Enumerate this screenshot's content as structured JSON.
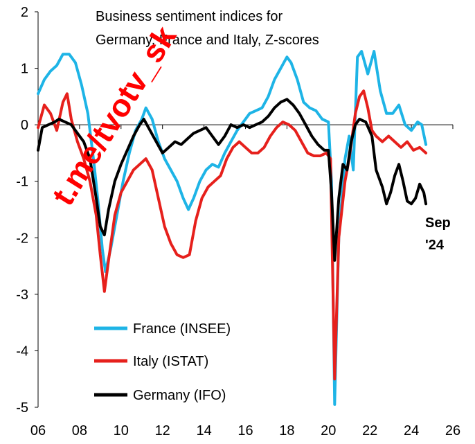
{
  "chart_data": {
    "type": "line",
    "title_lines": [
      "Business sentiment indices for",
      "Germany, France and Italy, Z-scores"
    ],
    "xlim": [
      2006,
      2026
    ],
    "ylim": [
      -5,
      2
    ],
    "x_ticks": [
      {
        "value": 2006,
        "label": "06"
      },
      {
        "value": 2008,
        "label": "08"
      },
      {
        "value": 2010,
        "label": "10"
      },
      {
        "value": 2012,
        "label": "12"
      },
      {
        "value": 2014,
        "label": "14"
      },
      {
        "value": 2016,
        "label": "16"
      },
      {
        "value": 2018,
        "label": "18"
      },
      {
        "value": 2020,
        "label": "20"
      },
      {
        "value": 2022,
        "label": "22"
      },
      {
        "value": 2024,
        "label": "24"
      },
      {
        "value": 2026,
        "label": "26"
      }
    ],
    "y_ticks": [
      {
        "value": 2,
        "label": "2"
      },
      {
        "value": 1,
        "label": "1"
      },
      {
        "value": 0,
        "label": "0"
      },
      {
        "value": -1,
        "label": "-1"
      },
      {
        "value": -2,
        "label": "-2"
      },
      {
        "value": -3,
        "label": "-3"
      },
      {
        "value": -4,
        "label": "-4"
      },
      {
        "value": -5,
        "label": "-5"
      }
    ],
    "grid": false,
    "legend": "bottom-left",
    "annotation": [
      "Sep",
      "'24"
    ],
    "watermark": "t.me/tvotv_sk",
    "series": [
      {
        "name": "France (INSEE)",
        "color": "#1eb4e6",
        "points": [
          [
            2006.0,
            0.55
          ],
          [
            2006.3,
            0.8
          ],
          [
            2006.6,
            0.95
          ],
          [
            2006.9,
            1.05
          ],
          [
            2007.2,
            1.25
          ],
          [
            2007.5,
            1.25
          ],
          [
            2007.8,
            1.1
          ],
          [
            2008.1,
            0.7
          ],
          [
            2008.4,
            0.2
          ],
          [
            2008.7,
            -0.7
          ],
          [
            2008.9,
            -1.4
          ],
          [
            2009.1,
            -2.2
          ],
          [
            2009.25,
            -2.6
          ],
          [
            2009.5,
            -2.2
          ],
          [
            2009.8,
            -1.6
          ],
          [
            2010.1,
            -1.0
          ],
          [
            2010.4,
            -0.5
          ],
          [
            2010.7,
            -0.1
          ],
          [
            2011.0,
            0.1
          ],
          [
            2011.2,
            0.3
          ],
          [
            2011.5,
            0.1
          ],
          [
            2011.8,
            -0.3
          ],
          [
            2012.1,
            -0.6
          ],
          [
            2012.4,
            -0.8
          ],
          [
            2012.7,
            -1.0
          ],
          [
            2013.0,
            -1.3
          ],
          [
            2013.25,
            -1.5
          ],
          [
            2013.5,
            -1.3
          ],
          [
            2013.8,
            -1.0
          ],
          [
            2014.1,
            -0.8
          ],
          [
            2014.4,
            -0.7
          ],
          [
            2014.7,
            -0.75
          ],
          [
            2015.0,
            -0.5
          ],
          [
            2015.3,
            -0.3
          ],
          [
            2015.6,
            -0.1
          ],
          [
            2015.9,
            0.05
          ],
          [
            2016.2,
            0.2
          ],
          [
            2016.5,
            0.25
          ],
          [
            2016.8,
            0.3
          ],
          [
            2017.1,
            0.5
          ],
          [
            2017.4,
            0.8
          ],
          [
            2017.7,
            1.0
          ],
          [
            2018.0,
            1.2
          ],
          [
            2018.2,
            1.1
          ],
          [
            2018.5,
            0.8
          ],
          [
            2018.8,
            0.4
          ],
          [
            2019.1,
            0.3
          ],
          [
            2019.4,
            0.25
          ],
          [
            2019.7,
            0.1
          ],
          [
            2020.0,
            0.05
          ],
          [
            2020.15,
            -1.0
          ],
          [
            2020.3,
            -4.95
          ],
          [
            2020.5,
            -2.0
          ],
          [
            2020.8,
            -0.6
          ],
          [
            2021.0,
            -0.2
          ],
          [
            2021.2,
            -0.8
          ],
          [
            2021.4,
            1.2
          ],
          [
            2021.6,
            1.3
          ],
          [
            2021.9,
            0.9
          ],
          [
            2022.2,
            1.3
          ],
          [
            2022.5,
            0.6
          ],
          [
            2022.8,
            0.2
          ],
          [
            2023.1,
            0.2
          ],
          [
            2023.4,
            0.35
          ],
          [
            2023.7,
            0.0
          ],
          [
            2024.0,
            -0.1
          ],
          [
            2024.3,
            0.05
          ],
          [
            2024.5,
            0.0
          ],
          [
            2024.7,
            -0.35
          ]
        ]
      },
      {
        "name": "Italy (ISTAT)",
        "color": "#e6201c",
        "points": [
          [
            2006.0,
            -0.05
          ],
          [
            2006.3,
            0.35
          ],
          [
            2006.6,
            0.2
          ],
          [
            2006.9,
            -0.1
          ],
          [
            2007.2,
            0.4
          ],
          [
            2007.4,
            0.55
          ],
          [
            2007.6,
            0.1
          ],
          [
            2007.9,
            -0.3
          ],
          [
            2008.2,
            -0.6
          ],
          [
            2008.5,
            -1.0
          ],
          [
            2008.8,
            -1.6
          ],
          [
            2009.0,
            -2.3
          ],
          [
            2009.2,
            -2.95
          ],
          [
            2009.4,
            -2.4
          ],
          [
            2009.7,
            -1.6
          ],
          [
            2010.0,
            -1.2
          ],
          [
            2010.3,
            -1.0
          ],
          [
            2010.6,
            -0.8
          ],
          [
            2010.9,
            -0.7
          ],
          [
            2011.2,
            -0.6
          ],
          [
            2011.5,
            -0.8
          ],
          [
            2011.8,
            -1.3
          ],
          [
            2012.1,
            -1.8
          ],
          [
            2012.4,
            -2.1
          ],
          [
            2012.7,
            -2.3
          ],
          [
            2013.0,
            -2.35
          ],
          [
            2013.3,
            -2.3
          ],
          [
            2013.6,
            -1.7
          ],
          [
            2013.9,
            -1.3
          ],
          [
            2014.2,
            -1.1
          ],
          [
            2014.5,
            -1.0
          ],
          [
            2014.8,
            -0.9
          ],
          [
            2015.1,
            -0.6
          ],
          [
            2015.4,
            -0.4
          ],
          [
            2015.7,
            -0.3
          ],
          [
            2016.0,
            -0.4
          ],
          [
            2016.3,
            -0.5
          ],
          [
            2016.6,
            -0.5
          ],
          [
            2016.9,
            -0.4
          ],
          [
            2017.2,
            -0.2
          ],
          [
            2017.5,
            -0.05
          ],
          [
            2017.8,
            0.05
          ],
          [
            2018.1,
            0.0
          ],
          [
            2018.4,
            -0.1
          ],
          [
            2018.7,
            -0.3
          ],
          [
            2019.0,
            -0.5
          ],
          [
            2019.3,
            -0.55
          ],
          [
            2019.6,
            -0.55
          ],
          [
            2019.9,
            -0.5
          ],
          [
            2020.1,
            -0.6
          ],
          [
            2020.3,
            -4.5
          ],
          [
            2020.5,
            -2.0
          ],
          [
            2020.8,
            -1.0
          ],
          [
            2021.0,
            -0.6
          ],
          [
            2021.3,
            0.2
          ],
          [
            2021.5,
            0.5
          ],
          [
            2021.7,
            0.6
          ],
          [
            2021.9,
            0.3
          ],
          [
            2022.1,
            -0.1
          ],
          [
            2022.3,
            -0.2
          ],
          [
            2022.6,
            -0.3
          ],
          [
            2022.9,
            -0.2
          ],
          [
            2023.2,
            -0.3
          ],
          [
            2023.5,
            -0.4
          ],
          [
            2023.8,
            -0.3
          ],
          [
            2024.1,
            -0.45
          ],
          [
            2024.4,
            -0.4
          ],
          [
            2024.7,
            -0.5
          ]
        ]
      },
      {
        "name": "Germany (IFO)",
        "color": "#000000",
        "points": [
          [
            2006.0,
            -0.45
          ],
          [
            2006.2,
            -0.05
          ],
          [
            2006.5,
            0.0
          ],
          [
            2006.8,
            0.05
          ],
          [
            2007.0,
            0.1
          ],
          [
            2007.3,
            0.05
          ],
          [
            2007.6,
            0.0
          ],
          [
            2007.9,
            -0.15
          ],
          [
            2008.2,
            -0.3
          ],
          [
            2008.5,
            -0.6
          ],
          [
            2008.8,
            -1.3
          ],
          [
            2009.0,
            -1.8
          ],
          [
            2009.2,
            -1.95
          ],
          [
            2009.4,
            -1.5
          ],
          [
            2009.7,
            -1.0
          ],
          [
            2010.0,
            -0.7
          ],
          [
            2010.3,
            -0.45
          ],
          [
            2010.6,
            -0.2
          ],
          [
            2010.9,
            0.0
          ],
          [
            2011.1,
            0.1
          ],
          [
            2011.4,
            -0.1
          ],
          [
            2011.7,
            -0.3
          ],
          [
            2012.0,
            -0.5
          ],
          [
            2012.3,
            -0.4
          ],
          [
            2012.6,
            -0.3
          ],
          [
            2012.9,
            -0.35
          ],
          [
            2013.2,
            -0.25
          ],
          [
            2013.5,
            -0.15
          ],
          [
            2013.8,
            -0.1
          ],
          [
            2014.1,
            -0.05
          ],
          [
            2014.4,
            -0.2
          ],
          [
            2014.7,
            -0.35
          ],
          [
            2015.0,
            -0.2
          ],
          [
            2015.3,
            0.0
          ],
          [
            2015.6,
            -0.05
          ],
          [
            2015.9,
            0.0
          ],
          [
            2016.2,
            -0.05
          ],
          [
            2016.5,
            0.0
          ],
          [
            2016.8,
            0.05
          ],
          [
            2017.1,
            0.15
          ],
          [
            2017.4,
            0.3
          ],
          [
            2017.7,
            0.4
          ],
          [
            2018.0,
            0.45
          ],
          [
            2018.3,
            0.35
          ],
          [
            2018.6,
            0.2
          ],
          [
            2018.9,
            0.0
          ],
          [
            2019.2,
            -0.2
          ],
          [
            2019.5,
            -0.35
          ],
          [
            2019.8,
            -0.45
          ],
          [
            2020.0,
            -0.45
          ],
          [
            2020.15,
            -1.2
          ],
          [
            2020.3,
            -2.4
          ],
          [
            2020.5,
            -1.3
          ],
          [
            2020.7,
            -0.7
          ],
          [
            2020.9,
            -0.8
          ],
          [
            2021.1,
            -0.3
          ],
          [
            2021.3,
            0.0
          ],
          [
            2021.5,
            0.1
          ],
          [
            2021.8,
            0.05
          ],
          [
            2022.1,
            -0.2
          ],
          [
            2022.3,
            -0.8
          ],
          [
            2022.6,
            -1.1
          ],
          [
            2022.8,
            -1.4
          ],
          [
            2023.0,
            -1.2
          ],
          [
            2023.2,
            -0.9
          ],
          [
            2023.4,
            -0.7
          ],
          [
            2023.6,
            -1.0
          ],
          [
            2023.8,
            -1.35
          ],
          [
            2024.0,
            -1.4
          ],
          [
            2024.2,
            -1.3
          ],
          [
            2024.4,
            -1.05
          ],
          [
            2024.6,
            -1.2
          ],
          [
            2024.7,
            -1.4
          ]
        ]
      }
    ]
  }
}
